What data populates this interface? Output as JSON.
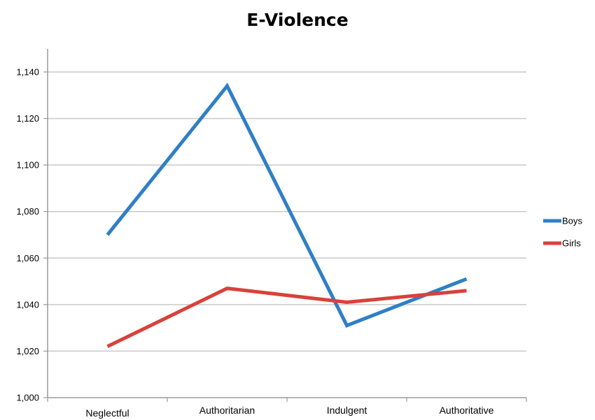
{
  "chart_data": {
    "type": "line",
    "title": "E-Violence",
    "xlabel": "",
    "ylabel": "",
    "categories": [
      "Neglectful",
      "Authoritarian",
      "Indulgent",
      "Authoritative"
    ],
    "y_ticks": [
      "1,000",
      "1,020",
      "1,040",
      "1,060",
      "1,080",
      "1,100",
      "1,120",
      "1,140"
    ],
    "ylim": [
      1.0,
      1.15
    ],
    "grid": true,
    "legend_position": "right",
    "series": [
      {
        "name": "Boys",
        "color": "#2E7FC6",
        "values": [
          1.07,
          1.134,
          1.031,
          1.051
        ]
      },
      {
        "name": "Girls",
        "color": "#D9413A",
        "values": [
          1.022,
          1.047,
          1.041,
          1.046
        ]
      }
    ]
  }
}
